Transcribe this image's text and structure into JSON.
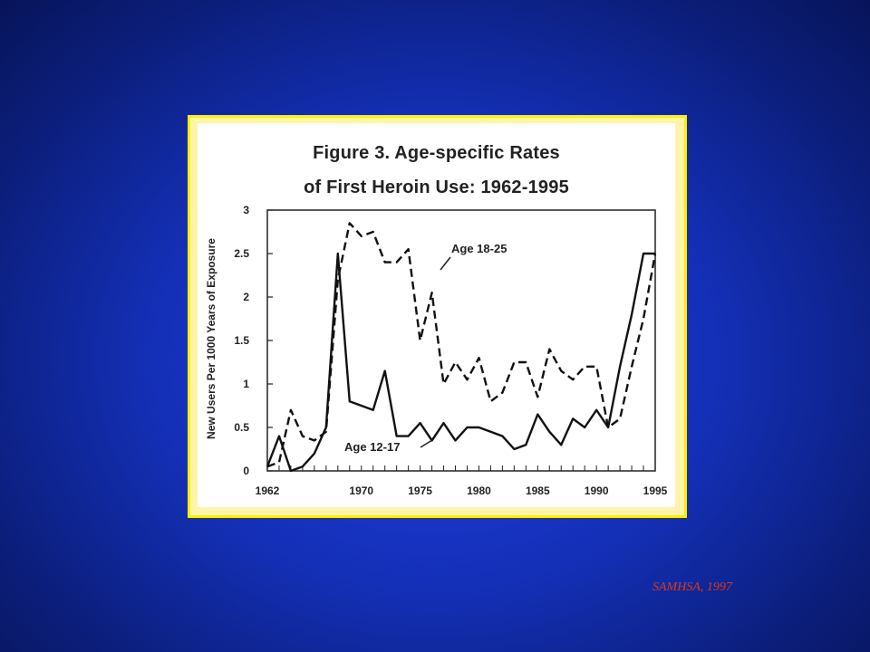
{
  "figure": {
    "title_line1": "Figure 3.  Age-specific Rates",
    "title_line2": "of First Heroin Use:  1962-1995"
  },
  "source": "SAMHSA, 1997",
  "chart_data": {
    "type": "line",
    "title": "Figure 3. Age-specific Rates of First Heroin Use: 1962-1995",
    "xlabel": "",
    "ylabel": "New Users Per 1000 Years of Exposure",
    "xlim": [
      1962,
      1995
    ],
    "ylim": [
      0,
      3
    ],
    "x_tick_labels": [
      "1962",
      "1970",
      "1975",
      "1980",
      "1985",
      "1990",
      "1995"
    ],
    "x_tick_values": [
      1962,
      1970,
      1975,
      1980,
      1985,
      1990,
      1995
    ],
    "y_tick_labels": [
      "0",
      "0.5",
      "1",
      "1.5",
      "2",
      "2.5",
      "3"
    ],
    "y_tick_values": [
      0,
      0.5,
      1,
      1.5,
      2,
      2.5,
      3
    ],
    "grid": false,
    "series": [
      {
        "name": "Age 18-25",
        "style": "dashed",
        "color": "#111111",
        "x": [
          1962,
          1963,
          1964,
          1965,
          1966,
          1967,
          1968,
          1969,
          1970,
          1971,
          1972,
          1973,
          1974,
          1975,
          1976,
          1977,
          1978,
          1979,
          1980,
          1981,
          1982,
          1983,
          1984,
          1985,
          1986,
          1987,
          1988,
          1989,
          1990,
          1991,
          1992,
          1993,
          1994,
          1995
        ],
        "y": [
          0.05,
          0.1,
          0.7,
          0.4,
          0.35,
          0.45,
          2.2,
          2.85,
          2.7,
          2.75,
          2.4,
          2.4,
          2.55,
          1.5,
          2.05,
          1.0,
          1.25,
          1.05,
          1.3,
          0.8,
          0.9,
          1.25,
          1.25,
          0.85,
          1.4,
          1.15,
          1.05,
          1.2,
          1.2,
          0.5,
          0.6,
          1.2,
          1.75,
          2.5
        ]
      },
      {
        "name": "Age 12-17",
        "style": "solid",
        "color": "#111111",
        "x": [
          1962,
          1963,
          1964,
          1965,
          1966,
          1967,
          1968,
          1969,
          1970,
          1971,
          1972,
          1973,
          1974,
          1975,
          1976,
          1977,
          1978,
          1979,
          1980,
          1981,
          1982,
          1983,
          1984,
          1985,
          1986,
          1987,
          1988,
          1989,
          1990,
          1991,
          1992,
          1993,
          1994,
          1995
        ],
        "y": [
          0.05,
          0.4,
          0.0,
          0.05,
          0.2,
          0.5,
          2.5,
          0.8,
          0.75,
          0.7,
          1.15,
          0.4,
          0.4,
          0.55,
          0.35,
          0.55,
          0.35,
          0.5,
          0.5,
          0.45,
          0.4,
          0.25,
          0.3,
          0.65,
          0.45,
          0.3,
          0.6,
          0.5,
          0.7,
          0.5,
          1.2,
          1.8,
          2.5,
          2.5
        ]
      }
    ]
  }
}
